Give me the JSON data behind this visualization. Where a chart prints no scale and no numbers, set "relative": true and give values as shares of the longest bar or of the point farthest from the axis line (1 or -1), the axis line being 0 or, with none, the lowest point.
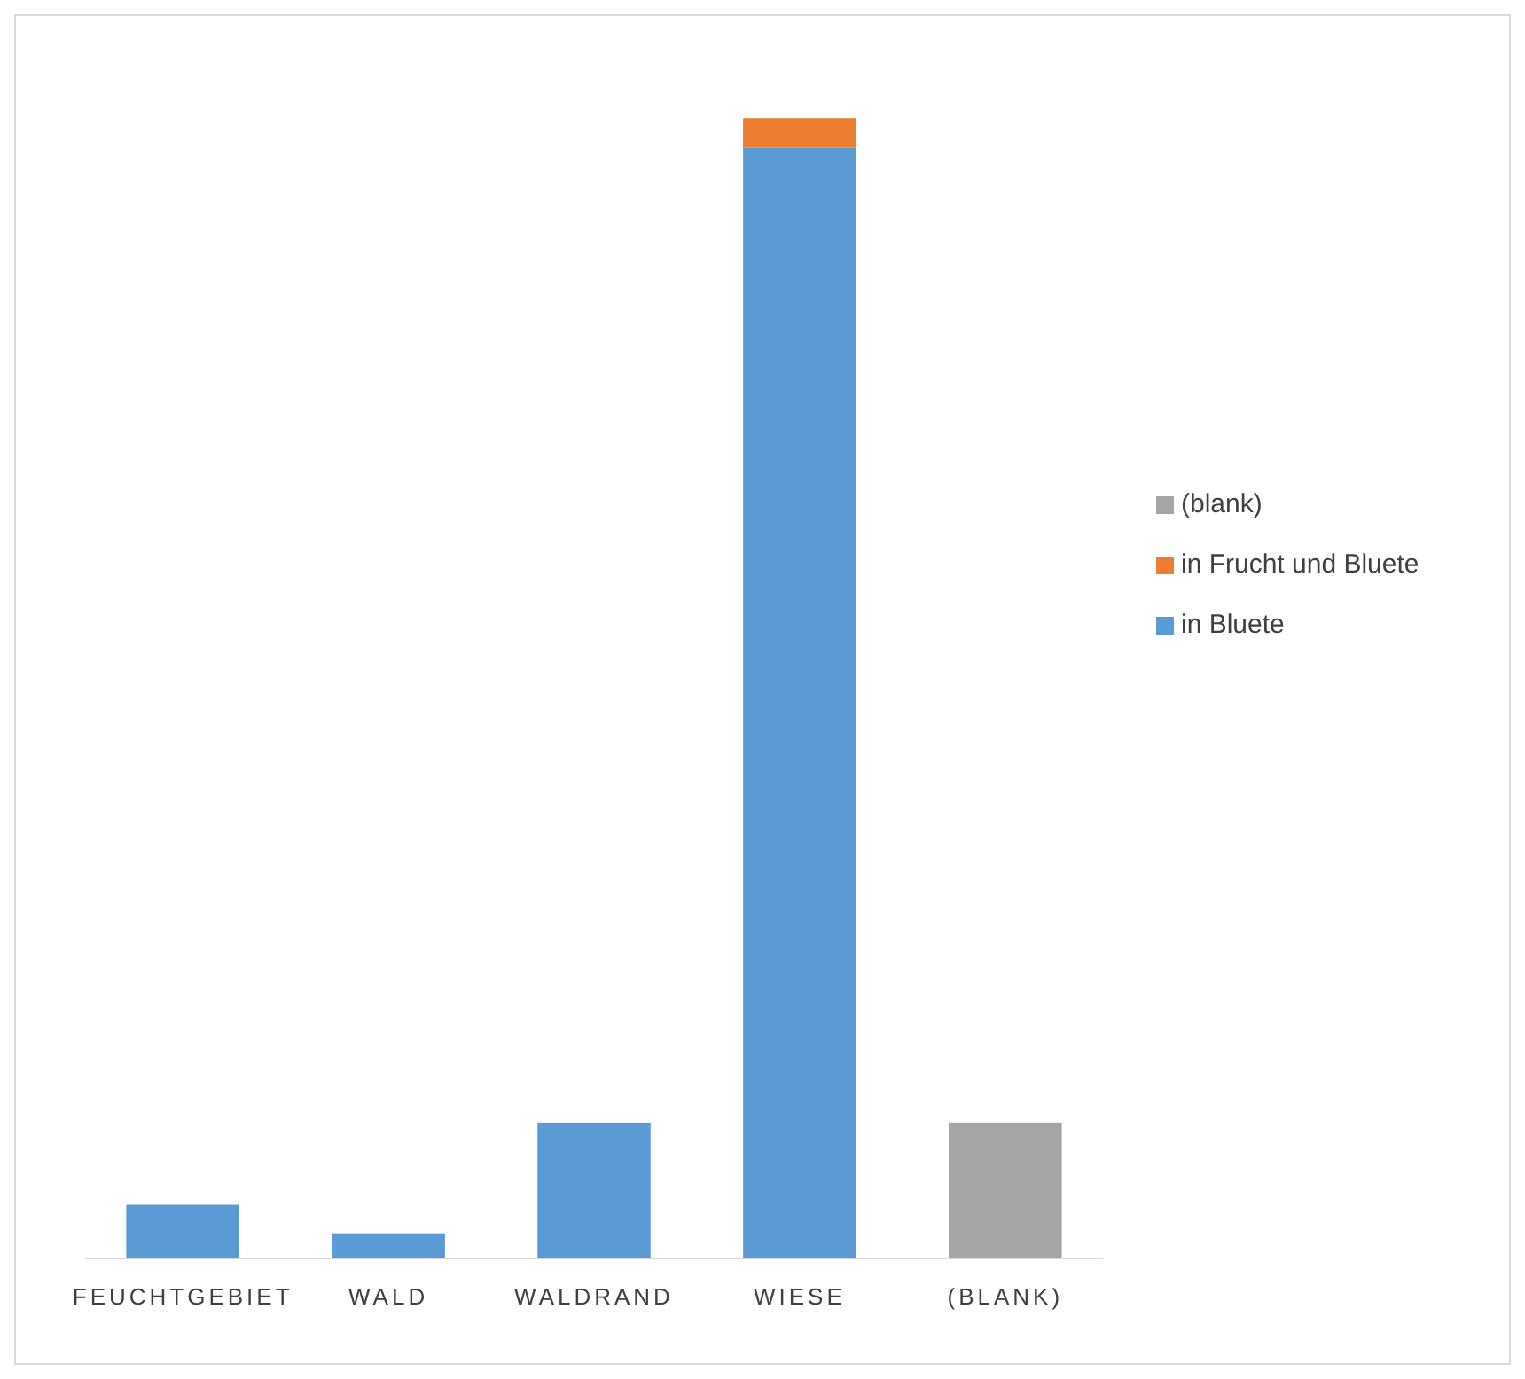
{
  "chart_data": {
    "type": "bar",
    "stacked": true,
    "relative": true,
    "categories": [
      "FEUCHTGEBIET",
      "WALD",
      "WALDRAND",
      "WIESE",
      "(BLANK)"
    ],
    "series": [
      {
        "name": "in Bluete",
        "color": "#5b9bd5",
        "values": [
          0.047,
          0.022,
          0.119,
          0.974,
          null
        ]
      },
      {
        "name": "in Frucht und Bluete",
        "color": "#ed7d31",
        "values": [
          null,
          null,
          null,
          0.026,
          null
        ]
      },
      {
        "name": "(blank)",
        "color": "#a5a5a5",
        "values": [
          null,
          null,
          null,
          null,
          0.119
        ]
      }
    ],
    "legend": "right"
  }
}
